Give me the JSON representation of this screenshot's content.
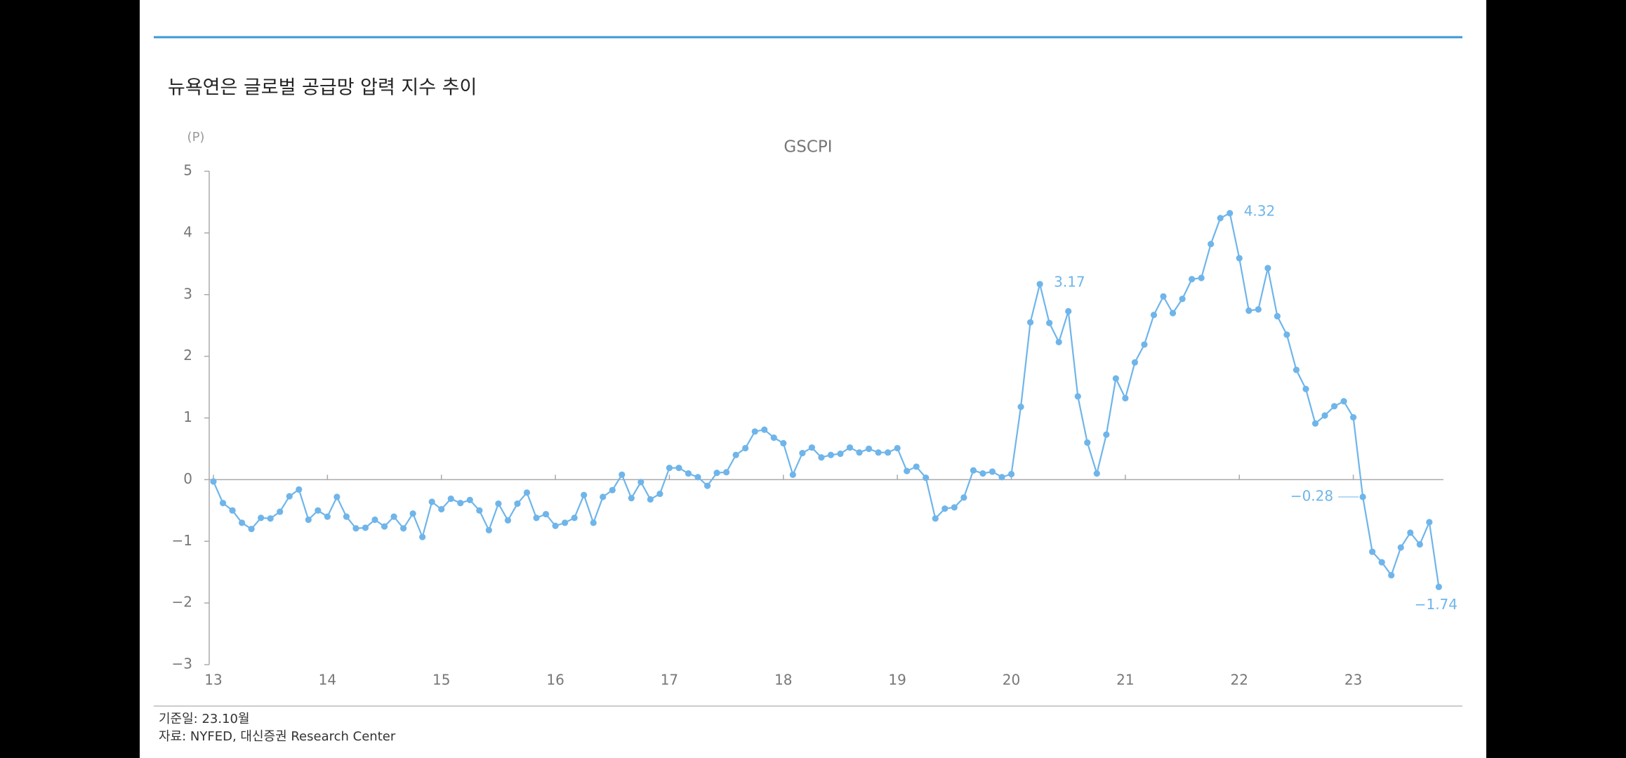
{
  "chart_data": {
    "type": "line",
    "title": "뉴욕연은 글로벌 공급망 압력 지수 추이",
    "unit": "(P)",
    "subtitle": "GSCPI",
    "notes": [
      "기준일: 23.10월",
      "자료: NYFED, 대신증권 Research Center"
    ],
    "color": "#6fb5ea",
    "grid": false,
    "categories": [
      "13",
      null,
      null,
      null,
      null,
      null,
      null,
      null,
      null,
      null,
      null,
      null,
      "14",
      null,
      null,
      null,
      null,
      null,
      null,
      null,
      null,
      null,
      null,
      null,
      "15",
      null,
      null,
      null,
      null,
      null,
      null,
      null,
      null,
      null,
      null,
      null,
      "16",
      null,
      null,
      null,
      null,
      null,
      null,
      null,
      null,
      null,
      null,
      null,
      "17",
      null,
      null,
      null,
      null,
      null,
      null,
      null,
      null,
      null,
      null,
      null,
      "18",
      null,
      null,
      null,
      null,
      null,
      null,
      null,
      null,
      null,
      null,
      null,
      "19",
      null,
      null,
      null,
      null,
      null,
      null,
      null,
      null,
      null,
      null,
      null,
      "20",
      null,
      null,
      null,
      null,
      null,
      null,
      null,
      null,
      null,
      null,
      null,
      "21",
      null,
      null,
      null,
      null,
      null,
      null,
      null,
      null,
      null,
      null,
      null,
      "22",
      null,
      null,
      null,
      null,
      null,
      null,
      null,
      null,
      null,
      null,
      null,
      "23",
      null,
      null,
      null,
      null,
      null,
      null,
      null,
      null,
      null
    ],
    "values": [
      -0.03,
      -0.38,
      -0.5,
      -0.7,
      -0.8,
      -0.62,
      -0.63,
      -0.52,
      -0.27,
      -0.16,
      -0.65,
      -0.5,
      -0.6,
      -0.28,
      -0.6,
      -0.79,
      -0.78,
      -0.65,
      -0.76,
      -0.6,
      -0.79,
      -0.55,
      -0.93,
      -0.36,
      -0.48,
      -0.31,
      -0.38,
      -0.33,
      -0.5,
      -0.82,
      -0.39,
      -0.66,
      -0.39,
      -0.21,
      -0.62,
      -0.56,
      -0.75,
      -0.7,
      -0.62,
      -0.25,
      -0.7,
      -0.28,
      -0.17,
      0.08,
      -0.3,
      -0.04,
      -0.32,
      -0.23,
      0.19,
      0.19,
      0.1,
      0.04,
      -0.1,
      0.11,
      0.12,
      0.4,
      0.51,
      0.78,
      0.81,
      0.68,
      0.59,
      0.08,
      0.43,
      0.52,
      0.36,
      0.4,
      0.42,
      0.52,
      0.44,
      0.5,
      0.44,
      0.44,
      0.51,
      0.14,
      0.21,
      0.03,
      -0.63,
      -0.47,
      -0.45,
      -0.29,
      0.15,
      0.1,
      0.13,
      0.04,
      0.09,
      1.18,
      2.55,
      3.17,
      2.54,
      2.23,
      2.73,
      1.35,
      0.6,
      0.1,
      0.73,
      1.64,
      1.32,
      1.9,
      2.19,
      2.67,
      2.97,
      2.7,
      2.93,
      3.25,
      3.27,
      3.82,
      4.24,
      4.32,
      3.59,
      2.74,
      2.76,
      3.43,
      2.65,
      2.35,
      1.78,
      1.47,
      0.91,
      1.04,
      1.19,
      1.27,
      1.01,
      -0.28,
      -1.17,
      -1.34,
      -1.55,
      -1.1,
      -0.86,
      -1.05,
      -0.69,
      -1.74
    ],
    "value_labels": [
      null,
      null,
      null,
      null,
      null,
      null,
      null,
      null,
      null,
      null,
      null,
      null,
      null,
      null,
      null,
      null,
      null,
      null,
      null,
      null,
      null,
      null,
      null,
      null,
      null,
      null,
      null,
      null,
      null,
      null,
      null,
      null,
      null,
      null,
      null,
      null,
      null,
      null,
      null,
      null,
      null,
      null,
      null,
      null,
      null,
      null,
      null,
      null,
      null,
      null,
      null,
      null,
      null,
      null,
      null,
      null,
      null,
      null,
      null,
      null,
      null,
      null,
      null,
      null,
      null,
      null,
      null,
      null,
      null,
      null,
      null,
      null,
      null,
      null,
      null,
      null,
      null,
      null,
      null,
      null,
      null,
      null,
      null,
      null,
      null,
      null,
      null,
      "3.17",
      null,
      null,
      null,
      null,
      null,
      null,
      null,
      null,
      null,
      null,
      null,
      null,
      null,
      null,
      null,
      null,
      null,
      null,
      null,
      "4.32",
      null,
      null,
      null,
      null,
      null,
      null,
      null,
      null,
      null,
      null,
      null,
      null,
      null,
      "−0.28",
      null,
      null,
      null,
      null,
      null,
      null,
      null,
      "−1.74"
    ],
    "ylim": [
      -3,
      5
    ],
    "yticks": [
      {
        "value": -3,
        "label": "−3"
      },
      {
        "value": -2,
        "label": "−2"
      },
      {
        "value": -1,
        "label": "−1"
      },
      0,
      1,
      2,
      3,
      4,
      5
    ]
  }
}
